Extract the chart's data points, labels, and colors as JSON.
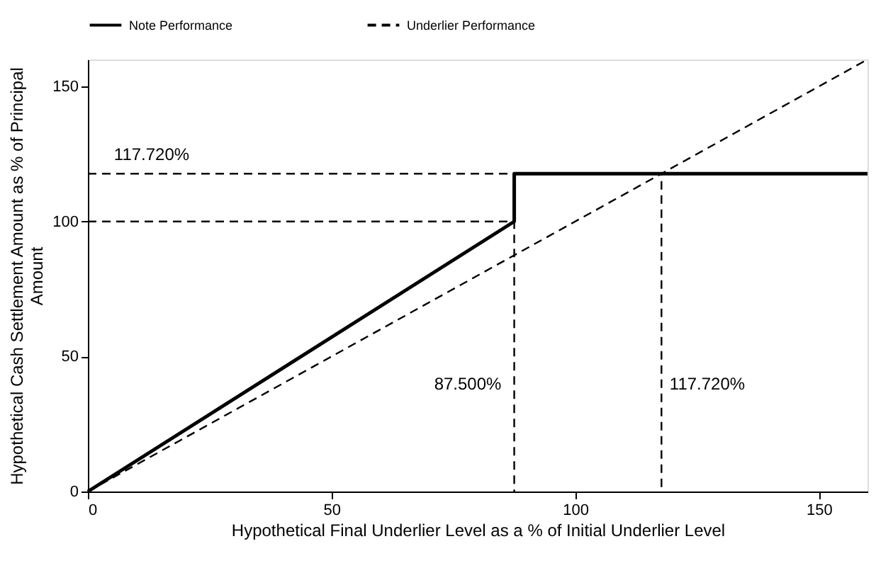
{
  "chart_data": {
    "type": "line",
    "xlabel": "Hypothetical Final Underlier Level as a % of Initial Underlier Level",
    "ylabel": "Hypothetical Cash Settlement Amount as % of Principal Amount",
    "xlim": [
      0,
      160
    ],
    "ylim": [
      0,
      160
    ],
    "xticks": [
      0,
      50,
      100,
      150
    ],
    "yticks": [
      0,
      50,
      100,
      150
    ],
    "grid": false,
    "legend": "top",
    "marker": "none",
    "series": [
      {
        "name": "Note Performance",
        "color": "#000000",
        "line_style": "solid",
        "x": [
          0,
          87.5,
          87.5,
          160
        ],
        "values": [
          0,
          100,
          117.72,
          117.72
        ]
      },
      {
        "name": "Underlier Performance",
        "color": "#000000",
        "line_style": "dashed",
        "x": [
          0,
          160
        ],
        "values": [
          0,
          160
        ]
      },
      {
        "color": "#000000",
        "line_style": "dashed",
        "x": [
          0,
          117.72,
          117.72
        ],
        "values": [
          117.72,
          117.72,
          0
        ]
      },
      {
        "color": "#000000",
        "line_style": "dashed",
        "x": [
          0,
          87.5,
          87.5
        ],
        "values": [
          100,
          100,
          0
        ]
      }
    ],
    "annotations": [
      "117.720%",
      "87.500%",
      "117.720%"
    ]
  }
}
